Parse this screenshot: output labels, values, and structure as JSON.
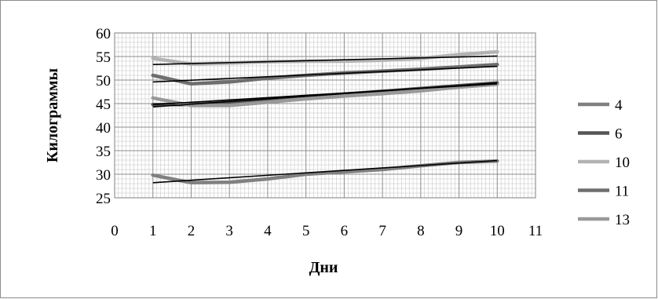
{
  "chart_data": {
    "type": "line",
    "title": "",
    "xlabel": "Дни",
    "ylabel": "Килограммы",
    "xlim": [
      0,
      11
    ],
    "ylim": [
      25,
      60
    ],
    "x_ticks": [
      0,
      1,
      2,
      3,
      4,
      5,
      6,
      7,
      8,
      9,
      10,
      11
    ],
    "y_ticks": [
      25,
      30,
      35,
      40,
      45,
      50,
      55,
      60
    ],
    "grid": "major and minor",
    "legend_position": "right",
    "x": [
      1,
      2,
      3,
      4,
      5,
      6,
      7,
      8,
      9,
      10
    ],
    "series": [
      {
        "name": "4",
        "color": "#808080",
        "values": [
          29.8,
          28.2,
          28.3,
          29.0,
          30.0,
          30.5,
          31.0,
          31.8,
          32.5,
          32.8
        ]
      },
      {
        "name": "6",
        "color": "#555555",
        "values": [
          44.8,
          44.8,
          45.3,
          45.8,
          46.4,
          47.0,
          47.6,
          48.2,
          48.8,
          49.4
        ]
      },
      {
        "name": "10",
        "color": "#b3b3b3",
        "values": [
          54.6,
          53.4,
          53.6,
          53.9,
          54.0,
          54.0,
          54.2,
          54.6,
          55.4,
          56.0
        ]
      },
      {
        "name": "11",
        "color": "#6e6e6e",
        "values": [
          51.0,
          49.2,
          49.6,
          50.4,
          51.0,
          51.5,
          51.9,
          52.3,
          52.8,
          53.3
        ]
      },
      {
        "name": "13",
        "color": "#999999",
        "values": [
          46.2,
          44.6,
          44.6,
          45.3,
          46.0,
          46.6,
          47.1,
          47.7,
          48.5,
          49.1
        ]
      }
    ],
    "trendlines": [
      {
        "series": "4",
        "from": [
          1,
          28.2
        ],
        "to": [
          10,
          32.9
        ]
      },
      {
        "series": "6",
        "from": [
          1,
          44.3
        ],
        "to": [
          10,
          49.4
        ]
      },
      {
        "series": "10",
        "from": [
          1,
          53.3
        ],
        "to": [
          10,
          55.1
        ]
      },
      {
        "series": "11",
        "from": [
          1,
          49.6
        ],
        "to": [
          10,
          52.9
        ]
      },
      {
        "series": "13",
        "from": [
          1,
          44.8
        ],
        "to": [
          10,
          49.2
        ]
      }
    ]
  }
}
